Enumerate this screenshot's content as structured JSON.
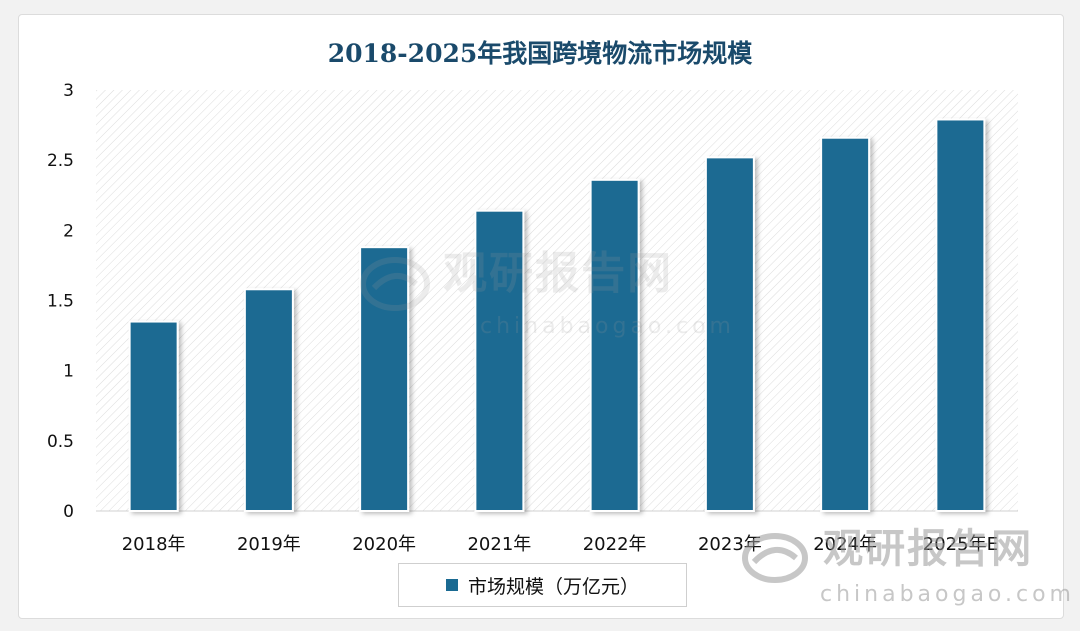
{
  "colors": {
    "bar": "#1a6a92",
    "title": "#1a4a6b",
    "axis_text": "#111111"
  },
  "watermark": {
    "title": "观研报告网",
    "url": "chinabaogao.com"
  },
  "chart_data": {
    "type": "bar",
    "title": "2018-2025年我国跨境物流市场规模",
    "categories": [
      "2018年",
      "2019年",
      "2020年",
      "2021年",
      "2022年",
      "2023年",
      "2024年",
      "2025年E"
    ],
    "series": [
      {
        "name": "市场规模（万亿元）",
        "values": [
          1.35,
          1.58,
          1.88,
          2.14,
          2.36,
          2.52,
          2.66,
          2.79
        ]
      }
    ],
    "yticks": [
      "0",
      "0.5",
      "1",
      "1.5",
      "2",
      "2.5",
      "3"
    ],
    "ylim": [
      0,
      3
    ],
    "grid": false,
    "legend_position": "bottom"
  }
}
